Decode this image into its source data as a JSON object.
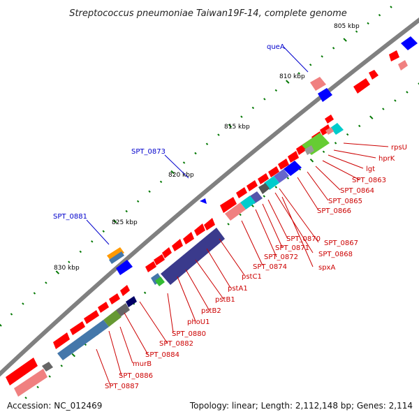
{
  "title": "Streptococcus pneumoniae Taiwan19F-14, complete genome",
  "footer": {
    "accession": "Accession: NC_012469",
    "summary": "Topology: linear; Length: 2,112,148 bp; Genes: 2,114"
  },
  "scale_labels": [
    "805 kbp",
    "810 kbp",
    "815 kbp",
    "820 kbp",
    "825 kbp",
    "830 kbp"
  ],
  "blue_labels": [
    "queA",
    "SPT_0873",
    "SPT_0881"
  ],
  "red_labels": [
    "rpsU",
    "hprK",
    "lgt",
    "SPT_0863",
    "SPT_0864",
    "SPT_0865",
    "SPT_0866",
    "SPT_0867",
    "SPT_0868",
    "SPT_0870",
    "SPT_0871",
    "SPT_0872",
    "spxA",
    "SPT_0874",
    "pstC1",
    "pstA1",
    "pstB1",
    "pstB2",
    "phoU1",
    "SPT_0880",
    "SPT_0882",
    "SPT_0884",
    "murB",
    "SPT_0886",
    "SPT_0887"
  ],
  "colors": {
    "backbone": "#808080",
    "gene_red": "#ff0000",
    "gene_pink": "#f08080",
    "gene_blue": "#0000ff",
    "label_red": "#cc0000",
    "label_blue": "#0000cc",
    "tick_green": "#007700"
  }
}
